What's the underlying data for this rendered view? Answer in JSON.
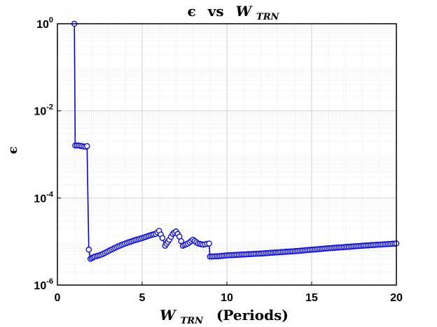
{
  "chart_data": {
    "type": "scatter",
    "title": {
      "parts": [
        "ϵ",
        "vs",
        "W",
        "TRN"
      ]
    },
    "xlabel": {
      "parts": [
        "W",
        "TRN",
        "(Periods)"
      ]
    },
    "ylabel": "ϵ",
    "x_scale": "linear",
    "y_scale": "log",
    "xlim": [
      0,
      20
    ],
    "ylim": [
      1e-06,
      1
    ],
    "x_ticks": [
      0,
      5,
      10,
      15,
      20
    ],
    "x_tick_labels": [
      "0",
      "5",
      "10",
      "15",
      "20"
    ],
    "y_ticks": [
      1e-06,
      0.0001,
      0.01,
      1
    ],
    "y_tick_labels": [
      {
        "base": "10",
        "exp": "-6"
      },
      {
        "base": "10",
        "exp": "-4"
      },
      {
        "base": "10",
        "exp": "-2"
      },
      {
        "base": "10",
        "exp": "0"
      }
    ],
    "grid": true,
    "minor_grid": true,
    "series": [
      {
        "marker": "circle",
        "line": true,
        "anchors": [
          [
            1.0,
            1.0
          ],
          [
            1.05,
            0.0016
          ],
          [
            1.25,
            0.0016
          ],
          [
            1.45,
            0.00155
          ],
          [
            1.65,
            0.0015
          ],
          [
            1.75,
            0.00155
          ],
          [
            1.85,
            6.5e-06
          ],
          [
            1.95,
            4e-06
          ],
          [
            2.2,
            4.5e-06
          ],
          [
            2.6,
            5e-06
          ],
          [
            3.0,
            6e-06
          ],
          [
            3.5,
            7.5e-06
          ],
          [
            4.0,
            9e-06
          ],
          [
            4.5,
            1.05e-05
          ],
          [
            5.0,
            1.2e-05
          ],
          [
            5.5,
            1.4e-05
          ],
          [
            5.8,
            1.5e-05
          ],
          [
            6.0,
            1.75e-05
          ],
          [
            6.2,
            1.2e-05
          ],
          [
            6.35,
            8e-06
          ],
          [
            6.6,
            1.1e-05
          ],
          [
            6.8,
            1.5e-05
          ],
          [
            7.0,
            1.7e-05
          ],
          [
            7.2,
            1.3e-05
          ],
          [
            7.4,
            8e-06
          ],
          [
            7.7,
            9e-06
          ],
          [
            8.0,
            1.1e-05
          ],
          [
            8.3,
            9e-06
          ],
          [
            8.6,
            8.5e-06
          ],
          [
            8.95,
            9e-06
          ],
          [
            9.0,
            4.5e-06
          ],
          [
            9.5,
            4.6e-06
          ],
          [
            10.0,
            4.8e-06
          ],
          [
            12.0,
            5.3e-06
          ],
          [
            14.0,
            6e-06
          ],
          [
            16.0,
            7e-06
          ],
          [
            18.0,
            8e-06
          ],
          [
            20.0,
            9e-06
          ]
        ]
      }
    ],
    "color": "#0000ff"
  }
}
